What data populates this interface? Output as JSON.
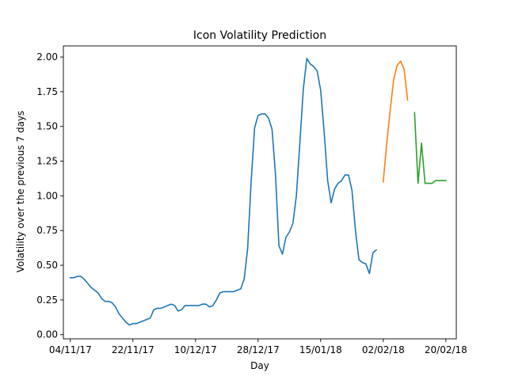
{
  "chart_data": {
    "type": "line",
    "title": "Icon Volatility Prediction",
    "xlabel": "Day",
    "ylabel": "Volatility over the previous 7 days",
    "xlim": [
      "2017-11-02",
      "2018-02-23"
    ],
    "ylim": [
      -0.03,
      2.08
    ],
    "x_ticks": [
      {
        "date": "2017-11-04",
        "label": "04/11/17"
      },
      {
        "date": "2017-11-22",
        "label": "22/11/17"
      },
      {
        "date": "2017-12-10",
        "label": "10/12/17"
      },
      {
        "date": "2017-12-28",
        "label": "28/12/17"
      },
      {
        "date": "2018-01-15",
        "label": "15/01/18"
      },
      {
        "date": "2018-02-02",
        "label": "02/02/18"
      },
      {
        "date": "2018-02-20",
        "label": "20/02/18"
      }
    ],
    "y_ticks": [
      {
        "value": 0.0,
        "label": "0.00"
      },
      {
        "value": 0.25,
        "label": "0.25"
      },
      {
        "value": 0.5,
        "label": "0.50"
      },
      {
        "value": 0.75,
        "label": "0.75"
      },
      {
        "value": 1.0,
        "label": "1.00"
      },
      {
        "value": 1.25,
        "label": "1.25"
      },
      {
        "value": 1.5,
        "label": "1.50"
      },
      {
        "value": 1.75,
        "label": "1.75"
      },
      {
        "value": 2.0,
        "label": "2.00"
      }
    ],
    "grid": false,
    "series": [
      {
        "color": "#1f77b4",
        "points": [
          [
            "2017-11-04",
            0.41
          ],
          [
            "2017-11-05",
            0.41
          ],
          [
            "2017-11-06",
            0.42
          ],
          [
            "2017-11-07",
            0.42
          ],
          [
            "2017-11-08",
            0.4
          ],
          [
            "2017-11-09",
            0.37
          ],
          [
            "2017-11-10",
            0.34
          ],
          [
            "2017-11-11",
            0.32
          ],
          [
            "2017-11-12",
            0.3
          ],
          [
            "2017-11-13",
            0.26
          ],
          [
            "2017-11-14",
            0.24
          ],
          [
            "2017-11-15",
            0.24
          ],
          [
            "2017-11-16",
            0.23
          ],
          [
            "2017-11-17",
            0.2
          ],
          [
            "2017-11-18",
            0.15
          ],
          [
            "2017-11-19",
            0.12
          ],
          [
            "2017-11-20",
            0.09
          ],
          [
            "2017-11-21",
            0.07
          ],
          [
            "2017-11-22",
            0.08
          ],
          [
            "2017-11-23",
            0.08
          ],
          [
            "2017-11-24",
            0.09
          ],
          [
            "2017-11-25",
            0.1
          ],
          [
            "2017-11-26",
            0.11
          ],
          [
            "2017-11-27",
            0.12
          ],
          [
            "2017-11-28",
            0.18
          ],
          [
            "2017-11-29",
            0.19
          ],
          [
            "2017-11-30",
            0.19
          ],
          [
            "2017-12-01",
            0.2
          ],
          [
            "2017-12-02",
            0.21
          ],
          [
            "2017-12-03",
            0.22
          ],
          [
            "2017-12-04",
            0.21
          ],
          [
            "2017-12-05",
            0.17
          ],
          [
            "2017-12-06",
            0.18
          ],
          [
            "2017-12-07",
            0.21
          ],
          [
            "2017-12-08",
            0.21
          ],
          [
            "2017-12-09",
            0.21
          ],
          [
            "2017-12-10",
            0.21
          ],
          [
            "2017-12-11",
            0.21
          ],
          [
            "2017-12-12",
            0.22
          ],
          [
            "2017-12-13",
            0.22
          ],
          [
            "2017-12-14",
            0.2
          ],
          [
            "2017-12-15",
            0.21
          ],
          [
            "2017-12-16",
            0.25
          ],
          [
            "2017-12-17",
            0.3
          ],
          [
            "2017-12-18",
            0.31
          ],
          [
            "2017-12-19",
            0.31
          ],
          [
            "2017-12-20",
            0.31
          ],
          [
            "2017-12-21",
            0.31
          ],
          [
            "2017-12-22",
            0.32
          ],
          [
            "2017-12-23",
            0.33
          ],
          [
            "2017-12-24",
            0.4
          ],
          [
            "2017-12-25",
            0.62
          ],
          [
            "2017-12-26",
            1.1
          ],
          [
            "2017-12-27",
            1.49
          ],
          [
            "2017-12-28",
            1.58
          ],
          [
            "2017-12-29",
            1.59
          ],
          [
            "2017-12-30",
            1.59
          ],
          [
            "2017-12-31",
            1.56
          ],
          [
            "2018-01-01",
            1.48
          ],
          [
            "2018-01-02",
            1.15
          ],
          [
            "2018-01-03",
            0.64
          ],
          [
            "2018-01-04",
            0.58
          ],
          [
            "2018-01-05",
            0.7
          ],
          [
            "2018-01-06",
            0.74
          ],
          [
            "2018-01-07",
            0.8
          ],
          [
            "2018-01-08",
            1.0
          ],
          [
            "2018-01-09",
            1.38
          ],
          [
            "2018-01-10",
            1.77
          ],
          [
            "2018-01-11",
            1.99
          ],
          [
            "2018-01-12",
            1.95
          ],
          [
            "2018-01-13",
            1.93
          ],
          [
            "2018-01-14",
            1.9
          ],
          [
            "2018-01-15",
            1.76
          ],
          [
            "2018-01-16",
            1.46
          ],
          [
            "2018-01-17",
            1.11
          ],
          [
            "2018-01-18",
            0.95
          ],
          [
            "2018-01-19",
            1.05
          ],
          [
            "2018-01-20",
            1.09
          ],
          [
            "2018-01-21",
            1.11
          ],
          [
            "2018-01-22",
            1.15
          ],
          [
            "2018-01-23",
            1.15
          ],
          [
            "2018-01-24",
            1.04
          ],
          [
            "2018-01-25",
            0.75
          ],
          [
            "2018-01-26",
            0.54
          ],
          [
            "2018-01-27",
            0.52
          ],
          [
            "2018-01-28",
            0.51
          ],
          [
            "2018-01-29",
            0.44
          ],
          [
            "2018-01-30",
            0.59
          ],
          [
            "2018-01-31",
            0.61
          ]
        ]
      },
      {
        "color": "#ff7f0e",
        "points": [
          [
            "2018-02-02",
            1.1
          ],
          [
            "2018-02-03",
            1.38
          ],
          [
            "2018-02-04",
            1.62
          ],
          [
            "2018-02-05",
            1.84
          ],
          [
            "2018-02-06",
            1.94
          ],
          [
            "2018-02-07",
            1.97
          ],
          [
            "2018-02-08",
            1.91
          ],
          [
            "2018-02-09",
            1.69
          ]
        ]
      },
      {
        "color": "#2ca02c",
        "points": [
          [
            "2018-02-11",
            1.6
          ],
          [
            "2018-02-12",
            1.09
          ],
          [
            "2018-02-13",
            1.38
          ],
          [
            "2018-02-14",
            1.09
          ],
          [
            "2018-02-15",
            1.09
          ],
          [
            "2018-02-16",
            1.09
          ],
          [
            "2018-02-17",
            1.11
          ],
          [
            "2018-02-18",
            1.11
          ],
          [
            "2018-02-19",
            1.11
          ],
          [
            "2018-02-20",
            1.11
          ]
        ]
      }
    ]
  }
}
